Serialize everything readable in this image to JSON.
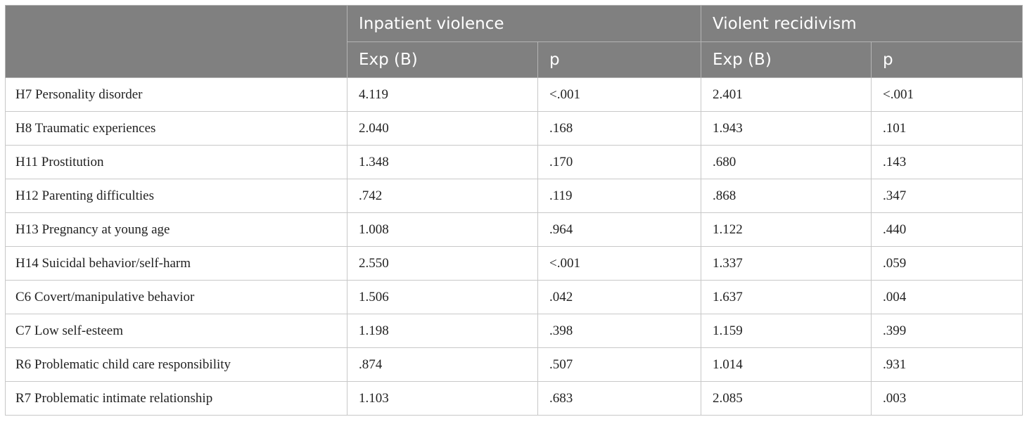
{
  "header": {
    "group1": "Inpatient violence",
    "group2": "Violent recidivism",
    "sub": [
      "Exp (B)",
      "p",
      "Exp (B)",
      "p"
    ]
  },
  "rows": [
    {
      "label": "H7 Personality disorder",
      "iv_exp": "4.119",
      "iv_p": "<.001",
      "vr_exp": "2.401",
      "vr_p": "<.001"
    },
    {
      "label": "H8 Traumatic experiences",
      "iv_exp": "2.040",
      "iv_p": ".168",
      "vr_exp": "1.943",
      "vr_p": ".101"
    },
    {
      "label": "H11 Prostitution",
      "iv_exp": "1.348",
      "iv_p": ".170",
      "vr_exp": ".680",
      "vr_p": ".143"
    },
    {
      "label": "H12 Parenting difficulties",
      "iv_exp": ".742",
      "iv_p": ".119",
      "vr_exp": ".868",
      "vr_p": ".347"
    },
    {
      "label": "H13 Pregnancy at young age",
      "iv_exp": "1.008",
      "iv_p": ".964",
      "vr_exp": "1.122",
      "vr_p": ".440"
    },
    {
      "label": "H14 Suicidal behavior/self-harm",
      "iv_exp": "2.550",
      "iv_p": "<.001",
      "vr_exp": "1.337",
      "vr_p": ".059"
    },
    {
      "label": "C6 Covert/manipulative behavior",
      "iv_exp": "1.506",
      "iv_p": ".042",
      "vr_exp": "1.637",
      "vr_p": ".004"
    },
    {
      "label": "C7 Low self-esteem",
      "iv_exp": "1.198",
      "iv_p": ".398",
      "vr_exp": "1.159",
      "vr_p": ".399"
    },
    {
      "label": "R6 Problematic child care responsibility",
      "iv_exp": ".874",
      "iv_p": ".507",
      "vr_exp": "1.014",
      "vr_p": ".931"
    },
    {
      "label": "R7 Problematic intimate relationship",
      "iv_exp": "1.103",
      "iv_p": ".683",
      "vr_exp": "2.085",
      "vr_p": ".003"
    }
  ]
}
